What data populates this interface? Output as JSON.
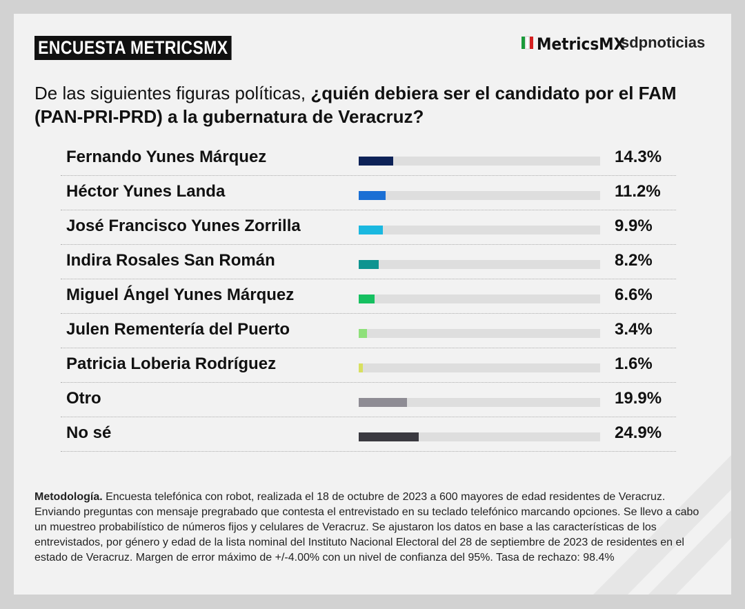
{
  "chart_data": {
    "type": "bar",
    "title": "ENCUESTA METRICSMX",
    "logos": [
      "MetricsMX",
      "sdpnoticias"
    ],
    "subtitle": {
      "normal": "De las siguientes figuras políticas, ",
      "bold": "¿quién debiera ser el candidato por el FAM (PAN-PRI-PRD) a la gubernatura de Veracruz?"
    },
    "categories": [
      "Fernando Yunes Márquez",
      "Héctor Yunes Landa",
      "José Francisco Yunes Zorrilla",
      "Indira Rosales San Román",
      "Miguel Ángel Yunes Márquez",
      "Julen Rementería del Puerto",
      "Patricia Loberia Rodríguez",
      "Otro",
      "No sé"
    ],
    "values": [
      14.3,
      11.2,
      9.9,
      8.2,
      6.6,
      3.4,
      1.6,
      19.9,
      24.9
    ],
    "value_labels": [
      "14.3%",
      "11.2%",
      "9.9%",
      "8.2%",
      "6.6%",
      "3.4%",
      "1.6%",
      "19.9%",
      "24.9%"
    ],
    "colors": [
      "#0d2257",
      "#1a6fd4",
      "#1ab8e0",
      "#0e9490",
      "#16c060",
      "#8ee07a",
      "#d8e060",
      "#8e8c94",
      "#3a3940"
    ],
    "xlim": [
      0,
      100
    ],
    "note": {
      "bold": "Metodología.",
      "text": " Encuesta telefónica con robot, realizada el 18 de octubre de 2023 a 600 mayores de edad residentes de Veracruz. Enviando preguntas con mensaje pregrabado que contesta el entrevistado en su teclado telefónico marcando opciones. Se llevo a cabo un muestreo probabilístico de números fijos y celulares de Veracruz. Se ajustaron los datos en base a las características de los entrevistados, por género y edad de la lista nominal del Instituto Nacional Electoral del 28 de septiembre de 2023 de residentes en el estado de Veracruz. Margen de error máximo de +/-4.00% con un nivel de confianza del 95%. Tasa de rechazo: 98.4%"
    }
  }
}
